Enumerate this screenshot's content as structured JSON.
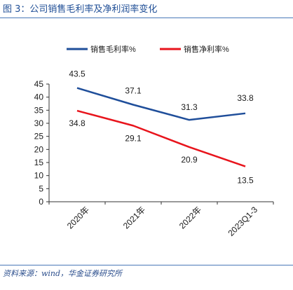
{
  "figure": {
    "title": "图 3：公司销售毛利率及净利润率变化",
    "source": "资料来源：wind，华金证券研究所"
  },
  "colors": {
    "gross": "#1f4e9a",
    "net": "#e8141c",
    "axis": "#333333",
    "accent": "#4a78b8"
  },
  "chart_data": {
    "type": "line",
    "title": "",
    "xlabel": "",
    "ylabel": "",
    "categories": [
      "2020年",
      "2021年",
      "2022年",
      "2023Q1-3"
    ],
    "ylim": [
      0,
      45
    ],
    "yticks": [
      0,
      5,
      10,
      15,
      20,
      25,
      30,
      35,
      40,
      45
    ],
    "grid": false,
    "legend_position": "top",
    "series": [
      {
        "name": "销售毛利率%",
        "values": [
          43.5,
          37.1,
          31.3,
          33.8
        ],
        "labels": [
          "43.5",
          "37.1",
          "31.3",
          "33.8"
        ]
      },
      {
        "name": "销售净利率%",
        "values": [
          34.8,
          29.1,
          20.9,
          13.5
        ],
        "labels": [
          "34.8",
          "29.1",
          "20.9",
          "13.5"
        ]
      }
    ]
  }
}
